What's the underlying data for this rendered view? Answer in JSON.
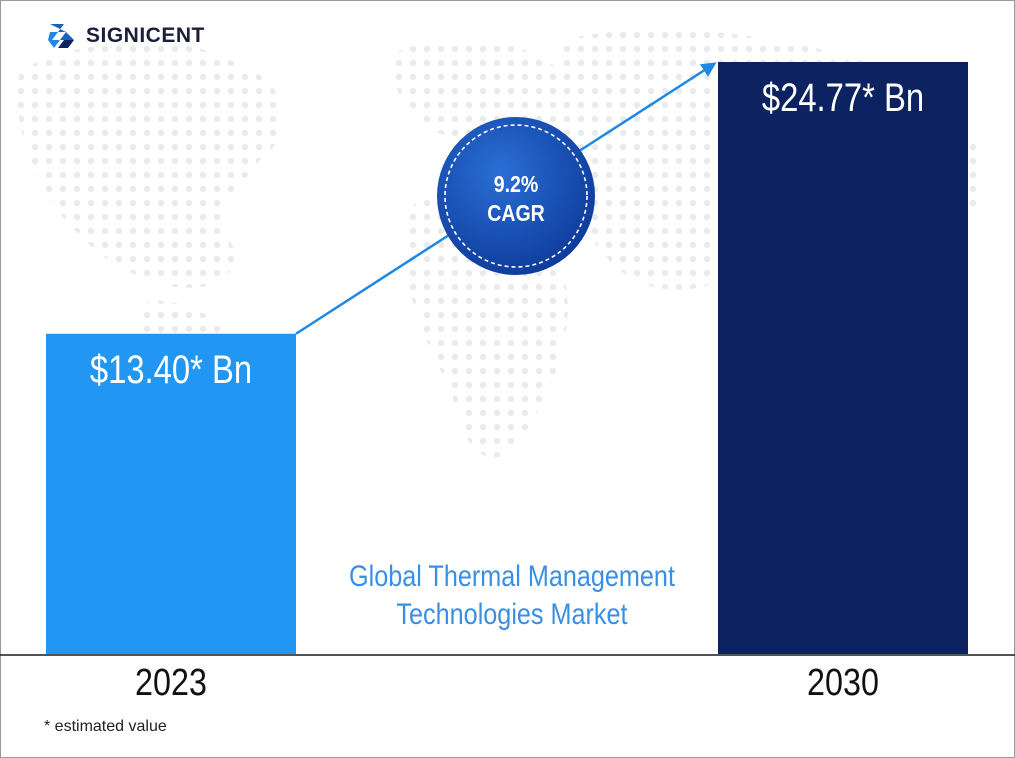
{
  "brand": {
    "name": "SIGNICENT"
  },
  "chart_data": {
    "type": "bar",
    "title": "Global Thermal Management Technologies Market",
    "title_lines": [
      "Global Thermal Management",
      "Technologies Market"
    ],
    "categories": [
      "2023",
      "2030"
    ],
    "values": [
      13.4,
      24.77
    ],
    "value_labels": [
      "$13.40* Bn",
      "$24.77* Bn"
    ],
    "unit": "USD Bn",
    "ylim": [
      0,
      24.77
    ],
    "colors": [
      "#2196f3",
      "#0d2260"
    ],
    "annotation": {
      "value": "9.2%",
      "label": "CAGR"
    }
  },
  "footnote": "* estimated value"
}
